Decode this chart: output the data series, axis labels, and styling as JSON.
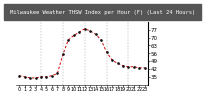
{
  "title": "Milwaukee Weather THSW Index per Hour (F) (Last 24 Hours)",
  "hours": [
    0,
    1,
    2,
    3,
    4,
    5,
    6,
    7,
    8,
    9,
    10,
    11,
    12,
    13,
    14,
    15,
    16,
    17,
    18,
    19,
    20,
    21,
    22,
    23
  ],
  "values": [
    36,
    35,
    34,
    34,
    35,
    35,
    36,
    38,
    55,
    68,
    72,
    75,
    78,
    76,
    73,
    68,
    57,
    50,
    47,
    45,
    44,
    44,
    43,
    43
  ],
  "line_color": "#cc0000",
  "marker_color": "#111111",
  "bg_color": "#ffffff",
  "title_bg": "#555555",
  "title_fg": "#ffffff",
  "grid_color": "#999999",
  "right_border_color": "#000000",
  "ylim": [
    28,
    84
  ],
  "ytick_values": [
    35,
    42,
    49,
    56,
    63,
    70,
    77
  ],
  "ytick_labels": [
    "35",
    "42",
    "49",
    "56",
    "63",
    "70",
    "77"
  ],
  "xlim": [
    -0.5,
    23.5
  ],
  "xtick_step": 1,
  "ylabel_fontsize": 4.0,
  "xlabel_fontsize": 3.5,
  "title_fontsize": 4.0,
  "line_width": 0.7,
  "marker_size": 1.8,
  "grid_lw": 0.35,
  "grid_positions": [
    4,
    8,
    12,
    16,
    20
  ]
}
